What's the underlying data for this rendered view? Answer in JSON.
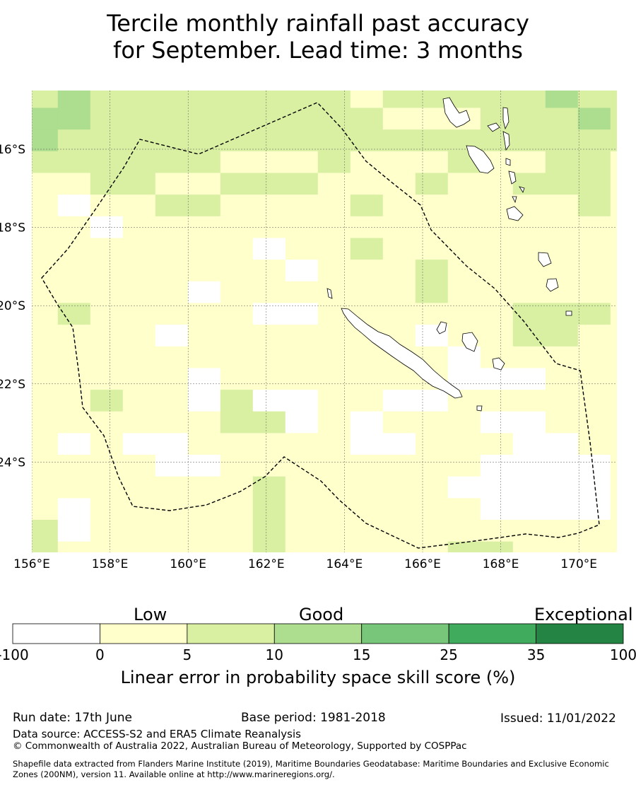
{
  "title": {
    "line1": "Tercile monthly rainfall past accuracy",
    "line2": "for September. Lead time: 3 months"
  },
  "map": {
    "longitude_labels": [
      "156°E",
      "158°E",
      "160°E",
      "162°E",
      "164°E",
      "166°E",
      "168°E",
      "170°E"
    ],
    "latitude_labels": [
      "16°S",
      "18°S",
      "20°S",
      "22°S",
      "24°S"
    ],
    "lon_range": [
      156,
      171
    ],
    "lat_range": [
      -14.5,
      -26.3
    ],
    "boundary": "dashed maritime boundary (New Caledonia EEZ)",
    "land": [
      "New Caledonia",
      "Vanuatu",
      "Loyalty Islands"
    ]
  },
  "colorbar": {
    "category_labels": [
      "Low",
      "Good",
      "Exceptional"
    ],
    "ticks": [
      "-100",
      "0",
      "5",
      "10",
      "15",
      "25",
      "35",
      "100"
    ],
    "colors": [
      "#ffffff",
      "#ffffcc",
      "#d9f0a3",
      "#addd8e",
      "#78c679",
      "#41ab5d",
      "#238443"
    ],
    "label": "Linear error in probability space skill score (%)"
  },
  "footer": {
    "run_date": "Run date: 17th June",
    "base_period": "Base period: 1981-2018",
    "issued": "Issued: 11/01/2022",
    "data_source": "Data source: ACCESS-S2 and ERA5 Climate Reanalysis",
    "copyright": "© Commonwealth of Australia 2022, Australian Bureau of Meteorology, Supported by COSPPac",
    "shapefile_line1": "Shapefile data extracted from Flanders Marine Institute (2019), Maritime Boundaries Geodatabase: Maritime Boundaries and Exclusive Economic",
    "shapefile_line2": "Zones (200NM), version 11. Available online at http://www.marineregions.org/."
  }
}
